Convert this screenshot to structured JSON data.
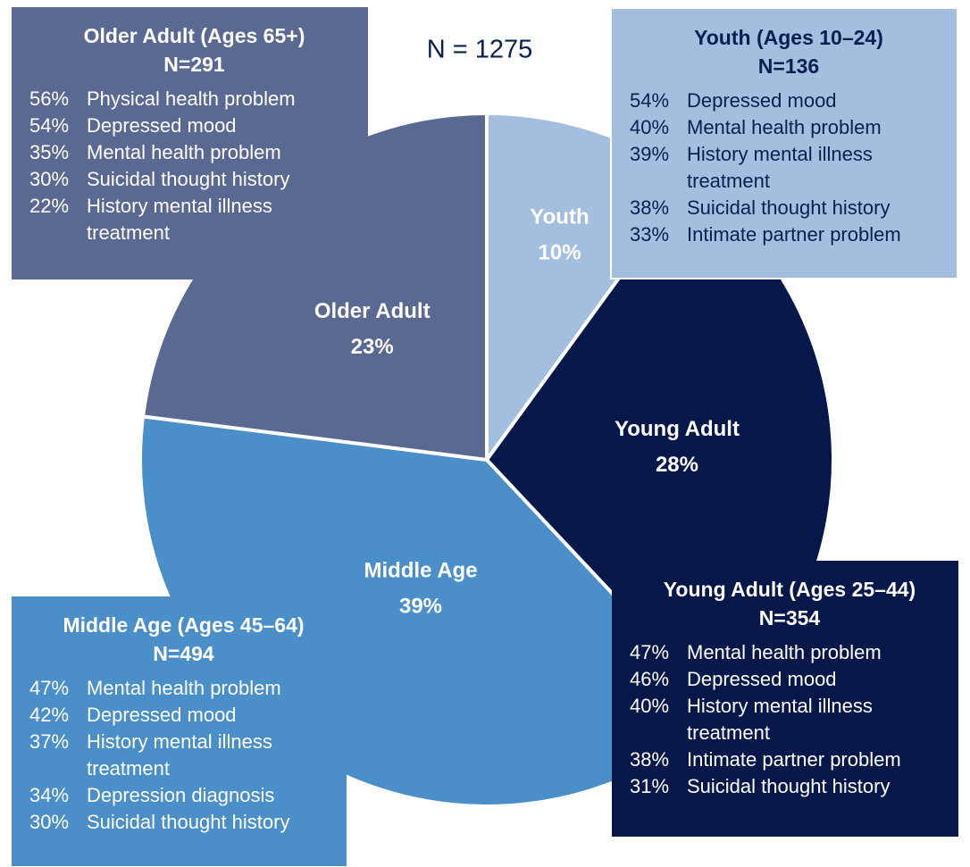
{
  "chart_data": {
    "type": "pie",
    "categories": [
      "Youth",
      "Young Adult",
      "Middle Age",
      "Older Adult"
    ],
    "values": [
      10,
      28,
      39,
      23
    ],
    "value_labels": [
      "10%",
      "28%",
      "39%",
      "23%"
    ],
    "colors": [
      "#a3bedf",
      "#06184a",
      "#4a8fc8",
      "#5a6992"
    ],
    "note": "N = 1275"
  },
  "boxes": [
    {
      "title": "Older Adult (Ages 65+)",
      "n": "N=291",
      "items": [
        {
          "pct": "56%",
          "text": "Physical health problem"
        },
        {
          "pct": "54%",
          "text": "Depressed mood"
        },
        {
          "pct": "35%",
          "text": "Mental health problem"
        },
        {
          "pct": "30%",
          "text": "Suicidal thought history"
        },
        {
          "pct": "22%",
          "text": "History mental illness treatment"
        }
      ]
    },
    {
      "title": "Youth (Ages 10–24)",
      "n": "N=136",
      "items": [
        {
          "pct": "54%",
          "text": "Depressed mood"
        },
        {
          "pct": "40%",
          "text": "Mental health problem"
        },
        {
          "pct": "39%",
          "text": "History mental illness treatment"
        },
        {
          "pct": "38%",
          "text": "Suicidal thought history"
        },
        {
          "pct": "33%",
          "text": "Intimate partner problem"
        }
      ]
    },
    {
      "title": "Young Adult (Ages 25–44)",
      "n": "N=354",
      "items": [
        {
          "pct": "47%",
          "text": "Mental health problem"
        },
        {
          "pct": "46%",
          "text": "Depressed mood"
        },
        {
          "pct": "40%",
          "text": "History mental illness treatment"
        },
        {
          "pct": "38%",
          "text": "Intimate partner problem"
        },
        {
          "pct": "31%",
          "text": "Suicidal thought history"
        }
      ]
    },
    {
      "title": "Middle Age (Ages 45–64)",
      "n": "N=494",
      "items": [
        {
          "pct": "47%",
          "text": "Mental health problem"
        },
        {
          "pct": "42%",
          "text": "Depressed mood"
        },
        {
          "pct": "37%",
          "text": "History mental illness treatment"
        },
        {
          "pct": "34%",
          "text": "Depression diagnosis"
        },
        {
          "pct": "30%",
          "text": "Suicidal thought history"
        }
      ]
    }
  ]
}
